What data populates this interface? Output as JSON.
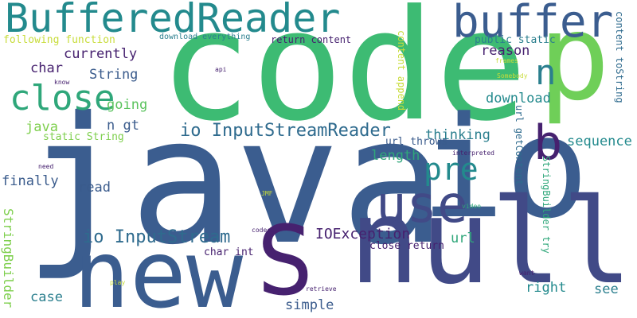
{
  "palette": {
    "dark_purple": "#46216f",
    "blue": "#3a5b8c",
    "teal": "#238a8d",
    "green": "#2fa77a",
    "light_green": "#8fd14f",
    "yellow": "#c8dc3a"
  },
  "words": [
    {
      "text": "java",
      "color": "#3b5d8f",
      "dir": "h"
    },
    {
      "text": "code",
      "color": "#3dbb73",
      "dir": "h"
    },
    {
      "text": "io",
      "color": "#3b5d8f",
      "dir": "h"
    },
    {
      "text": "null",
      "color": "#414a87",
      "dir": "h"
    },
    {
      "text": "new",
      "color": "#3b5d8f",
      "dir": "h"
    },
    {
      "text": "S",
      "color": "#46216f",
      "dir": "h"
    },
    {
      "text": "p",
      "color": "#6fcf58",
      "dir": "h"
    },
    {
      "text": "BufferedReader",
      "color": "#238a8d",
      "dir": "h"
    },
    {
      "text": "buffer",
      "color": "#3b5d8f",
      "dir": "h"
    },
    {
      "text": "use",
      "color": "#414a87",
      "dir": "h"
    },
    {
      "text": "b",
      "color": "#46216f",
      "dir": "h"
    },
    {
      "text": "n",
      "color": "#2b7f8e",
      "dir": "h"
    },
    {
      "text": "close",
      "color": "#2fa77a",
      "dir": "h"
    },
    {
      "text": "pre",
      "color": "#238a8d",
      "dir": "h"
    },
    {
      "text": "io InputStreamReader",
      "color": "#2f6b8e",
      "dir": "h"
    },
    {
      "text": "io InputStream",
      "color": "#2f6b8e",
      "dir": "h"
    },
    {
      "text": "IOException",
      "color": "#46216f",
      "dir": "h"
    },
    {
      "text": "currently",
      "color": "#46216f",
      "dir": "h"
    },
    {
      "text": "reason",
      "color": "#46216f",
      "dir": "h"
    },
    {
      "text": "String",
      "color": "#3a5b8c",
      "dir": "h"
    },
    {
      "text": "char",
      "color": "#46216f",
      "dir": "h"
    },
    {
      "text": "going",
      "color": "#5bc35e",
      "dir": "h"
    },
    {
      "text": "download",
      "color": "#238a8d",
      "dir": "h"
    },
    {
      "text": "n gt",
      "color": "#3a5b8c",
      "dir": "h"
    },
    {
      "text": "java",
      "color": "#7ecf4d",
      "dir": "h"
    },
    {
      "text": "thinking",
      "color": "#2b7f8e",
      "dir": "h"
    },
    {
      "text": "sequence",
      "color": "#238a8d",
      "dir": "h"
    },
    {
      "text": "length",
      "color": "#2fa77a",
      "dir": "h"
    },
    {
      "text": "finally",
      "color": "#3a5b8c",
      "dir": "h"
    },
    {
      "text": "read",
      "color": "#3a5b8c",
      "dir": "h"
    },
    {
      "text": "url",
      "color": "#2fa77a",
      "dir": "h"
    },
    {
      "text": "right",
      "color": "#238a8d",
      "dir": "h"
    },
    {
      "text": "see",
      "color": "#2b7f8e",
      "dir": "h"
    },
    {
      "text": "simple",
      "color": "#3a5b8c",
      "dir": "h"
    },
    {
      "text": "case",
      "color": "#2b7f8e",
      "dir": "h"
    },
    {
      "text": "close return",
      "color": "#46216f",
      "dir": "h"
    },
    {
      "text": "char int",
      "color": "#46216f",
      "dir": "h"
    },
    {
      "text": "static String",
      "color": "#7ecf4d",
      "dir": "h"
    },
    {
      "text": "url throws",
      "color": "#3a5b8c",
      "dir": "h"
    },
    {
      "text": "following function",
      "color": "#c8dc3a",
      "dir": "h"
    },
    {
      "text": "return content",
      "color": "#46216f",
      "dir": "h"
    },
    {
      "text": "public static",
      "color": "#2b7f8e",
      "dir": "h"
    },
    {
      "text": "download everything",
      "color": "#2b7f8e",
      "dir": "h"
    },
    {
      "text": "content append",
      "color": "#c8dc3a",
      "dir": "v"
    },
    {
      "text": "content toString",
      "color": "#2f6b8e",
      "dir": "v"
    },
    {
      "text": "url getContent",
      "color": "#2f6b8e",
      "dir": "v"
    },
    {
      "text": "StringBuilder try",
      "color": "#2fa77a",
      "dir": "v"
    },
    {
      "text": "StringBuilder",
      "color": "#7ecf4d",
      "dir": "v"
    },
    {
      "text": "frames",
      "color": "#c8dc3a",
      "dir": "h"
    },
    {
      "text": "Somebody",
      "color": "#c8dc3a",
      "dir": "h"
    },
    {
      "text": "api",
      "color": "#46216f",
      "dir": "h"
    },
    {
      "text": "know",
      "color": "#46216f",
      "dir": "h"
    },
    {
      "text": "need",
      "color": "#46216f",
      "dir": "h"
    },
    {
      "text": "interpreted",
      "color": "#46216f",
      "dir": "h"
    },
    {
      "text": "JMF",
      "color": "#c8dc3a",
      "dir": "h"
    },
    {
      "text": "video",
      "color": "#2fa77a",
      "dir": "h"
    },
    {
      "text": "codecs",
      "color": "#46216f",
      "dir": "h"
    },
    {
      "text": "want",
      "color": "#46216f",
      "dir": "h"
    },
    {
      "text": "play",
      "color": "#c8dc3a",
      "dir": "h"
    },
    {
      "text": "retrieve",
      "color": "#46216f",
      "dir": "h"
    }
  ]
}
